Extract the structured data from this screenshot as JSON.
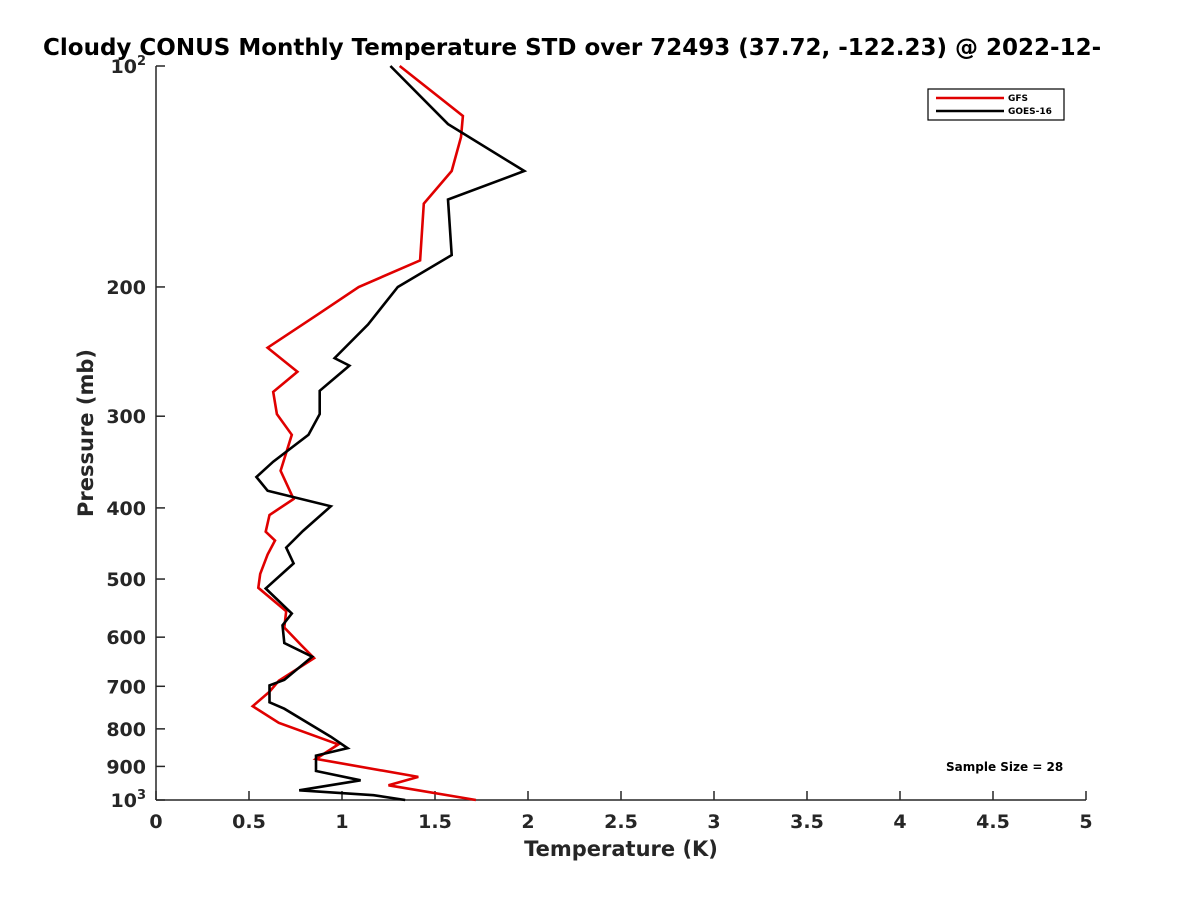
{
  "chart_data": {
    "type": "line",
    "title": "Cloudy CONUS Monthly Temperature STD over 72493 (37.72, -122.23) @ 2022-12-",
    "xlabel": "Temperature (K)",
    "ylabel": "Pressure (mb)",
    "xlim": [
      0,
      5
    ],
    "ylim": [
      100,
      1000
    ],
    "y_scale": "log",
    "y_reversed": true,
    "x_ticks": [
      "0",
      "0.5",
      "1",
      "1.5",
      "2",
      "2.5",
      "3",
      "3.5",
      "4",
      "4.5",
      "5"
    ],
    "x_tick_values": [
      0,
      0.5,
      1,
      1.5,
      2,
      2.5,
      3,
      3.5,
      4,
      4.5,
      5
    ],
    "y_tick_values": [
      100,
      200,
      300,
      400,
      500,
      600,
      700,
      800,
      900,
      1000
    ],
    "y_tick_labels": [
      "10^2",
      "200",
      "300",
      "400",
      "500",
      "600",
      "700",
      "800",
      "900",
      "10^3"
    ],
    "grid": false,
    "legend_position": "top-right",
    "annotation": "Sample Size = 28",
    "series": [
      {
        "name": "GFS",
        "color": "#e00000",
        "points": [
          [
            1.31,
            100
          ],
          [
            1.65,
            117
          ],
          [
            1.64,
            125
          ],
          [
            1.59,
            139
          ],
          [
            1.44,
            154
          ],
          [
            1.42,
            184
          ],
          [
            1.09,
            200
          ],
          [
            0.87,
            218
          ],
          [
            0.6,
            242
          ],
          [
            0.76,
            261
          ],
          [
            0.63,
            278
          ],
          [
            0.65,
            298
          ],
          [
            0.73,
            318
          ],
          [
            0.67,
            356
          ],
          [
            0.74,
            389
          ],
          [
            0.61,
            409
          ],
          [
            0.59,
            431
          ],
          [
            0.64,
            443
          ],
          [
            0.6,
            463
          ],
          [
            0.56,
            492
          ],
          [
            0.55,
            514
          ],
          [
            0.7,
            553
          ],
          [
            0.69,
            582
          ],
          [
            0.78,
            615
          ],
          [
            0.85,
            641
          ],
          [
            0.66,
            688
          ],
          [
            0.61,
            712
          ],
          [
            0.52,
            745
          ],
          [
            0.66,
            785
          ],
          [
            0.98,
            840
          ],
          [
            0.86,
            879
          ],
          [
            1.41,
            930
          ],
          [
            1.25,
            955
          ],
          [
            1.72,
            1000
          ]
        ]
      },
      {
        "name": "GOES-16",
        "color": "#000000",
        "points": [
          [
            1.26,
            100
          ],
          [
            1.57,
            120
          ],
          [
            1.98,
            139
          ],
          [
            1.57,
            152
          ],
          [
            1.59,
            181
          ],
          [
            1.3,
            200
          ],
          [
            1.14,
            225
          ],
          [
            0.96,
            250
          ],
          [
            1.04,
            256
          ],
          [
            0.88,
            277
          ],
          [
            0.88,
            298
          ],
          [
            0.82,
            318
          ],
          [
            0.63,
            346
          ],
          [
            0.54,
            363
          ],
          [
            0.6,
            379
          ],
          [
            0.94,
            398
          ],
          [
            0.79,
            430
          ],
          [
            0.7,
            453
          ],
          [
            0.74,
            476
          ],
          [
            0.59,
            515
          ],
          [
            0.73,
            557
          ],
          [
            0.68,
            578
          ],
          [
            0.69,
            611
          ],
          [
            0.84,
            638
          ],
          [
            0.69,
            686
          ],
          [
            0.61,
            698
          ],
          [
            0.61,
            736
          ],
          [
            0.69,
            751
          ],
          [
            0.94,
            820
          ],
          [
            1.03,
            850
          ],
          [
            0.86,
            870
          ],
          [
            0.86,
            913
          ],
          [
            1.1,
            940
          ],
          [
            0.77,
            970
          ],
          [
            1.17,
            985
          ],
          [
            1.34,
            1000
          ]
        ]
      }
    ]
  }
}
